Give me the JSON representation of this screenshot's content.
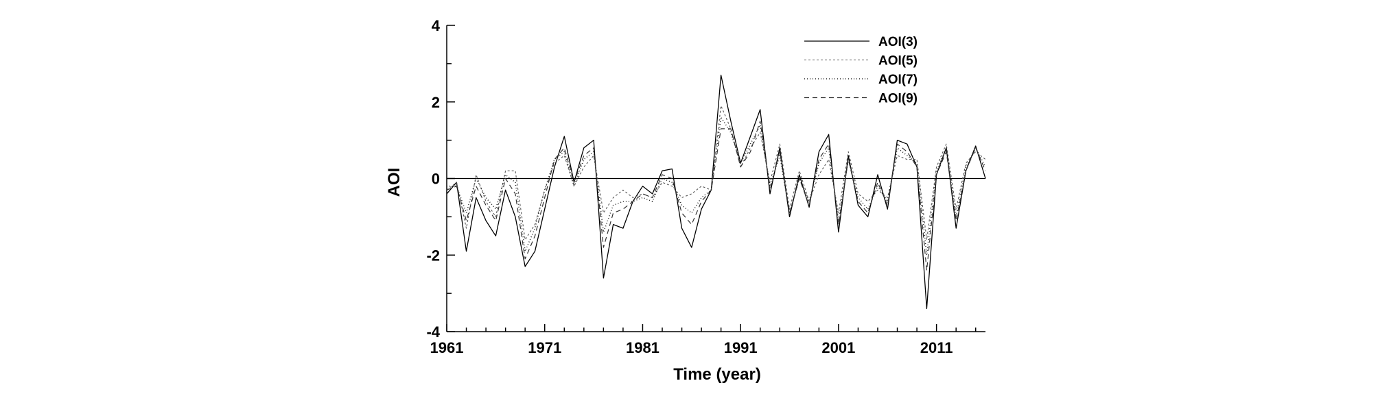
{
  "chart_data": {
    "type": "line",
    "title": "",
    "xlabel": "Time (year)",
    "ylabel": "AOI",
    "xlim": [
      1961,
      2016
    ],
    "ylim": [
      -4,
      4
    ],
    "x_ticks": [
      1961,
      1971,
      1981,
      1991,
      2001,
      2011
    ],
    "y_ticks": [
      4,
      2,
      0,
      -2,
      -4
    ],
    "y_tick_labels": [
      "4",
      "2",
      "0",
      "-2",
      "-4"
    ],
    "zero_line": true,
    "grid": false,
    "legend_position": "top-right",
    "x": [
      1961,
      1962,
      1963,
      1964,
      1965,
      1966,
      1967,
      1968,
      1969,
      1970,
      1971,
      1972,
      1973,
      1974,
      1975,
      1976,
      1977,
      1978,
      1979,
      1980,
      1981,
      1982,
      1983,
      1984,
      1985,
      1986,
      1987,
      1988,
      1989,
      1990,
      1991,
      1992,
      1993,
      1994,
      1995,
      1996,
      1997,
      1998,
      1999,
      2000,
      2001,
      2002,
      2003,
      2004,
      2005,
      2006,
      2007,
      2008,
      2009,
      2010,
      2011,
      2012,
      2013,
      2014,
      2015,
      2016
    ],
    "series": [
      {
        "name": "AOI(3)",
        "dash": "none",
        "values": [
          -0.4,
          -0.1,
          -1.9,
          -0.5,
          -1.1,
          -1.5,
          -0.3,
          -1.0,
          -2.3,
          -1.9,
          -0.8,
          0.3,
          1.1,
          -0.1,
          0.8,
          1.0,
          -2.6,
          -1.2,
          -1.3,
          -0.6,
          -0.2,
          -0.4,
          0.2,
          0.25,
          -1.3,
          -1.8,
          -0.8,
          -0.3,
          2.7,
          1.5,
          0.4,
          1.1,
          1.8,
          -0.4,
          0.8,
          -1.0,
          0.1,
          -0.75,
          0.7,
          1.15,
          -1.4,
          0.6,
          -0.7,
          -1.0,
          0.1,
          -0.8,
          1.0,
          0.9,
          0.3,
          -3.4,
          0.1,
          0.8,
          -1.3,
          0.2,
          0.85,
          0.0
        ]
      },
      {
        "name": "AOI(5)",
        "dash": "3,3",
        "values": [
          -0.3,
          -0.1,
          -1.3,
          0.1,
          -0.6,
          -1.0,
          0.2,
          0.2,
          -1.6,
          -1.2,
          -0.3,
          0.4,
          0.6,
          -0.2,
          0.3,
          0.6,
          -0.9,
          -0.5,
          -0.3,
          -0.5,
          -0.4,
          -0.5,
          -0.1,
          -0.2,
          -0.5,
          -0.4,
          -0.2,
          -0.3,
          1.9,
          1.3,
          0.3,
          0.8,
          1.2,
          -0.1,
          0.9,
          -0.8,
          0.2,
          -0.6,
          0.1,
          0.5,
          -0.9,
          0.7,
          -0.4,
          -0.6,
          -0.3,
          -0.5,
          0.6,
          0.5,
          0.5,
          -1.6,
          0.3,
          0.9,
          -0.8,
          0.4,
          0.7,
          0.5
        ]
      },
      {
        "name": "AOI(7)",
        "dash": "1,3",
        "values": [
          -0.2,
          -0.2,
          -0.9,
          0.0,
          -0.5,
          -0.8,
          0.1,
          -0.1,
          -1.9,
          -1.3,
          -0.3,
          0.5,
          0.7,
          -0.2,
          0.5,
          0.7,
          -1.4,
          -0.7,
          -0.6,
          -0.6,
          -0.5,
          -0.6,
          0.0,
          -0.1,
          -0.7,
          -0.9,
          -0.5,
          -0.3,
          1.6,
          1.2,
          0.4,
          0.9,
          1.4,
          -0.2,
          0.6,
          -0.9,
          0.0,
          -0.6,
          0.4,
          0.8,
          -1.1,
          0.5,
          -0.5,
          -0.8,
          -0.2,
          -0.6,
          0.8,
          0.6,
          0.4,
          -2.0,
          0.2,
          0.8,
          -1.0,
          0.3,
          0.8,
          0.3
        ]
      },
      {
        "name": "AOI(9)",
        "dash": "7,5",
        "values": [
          -0.3,
          -0.2,
          -1.1,
          -0.2,
          -0.7,
          -1.1,
          0.0,
          -0.4,
          -2.1,
          -1.5,
          -0.5,
          0.5,
          0.8,
          -0.1,
          0.6,
          0.8,
          -1.8,
          -0.9,
          -0.8,
          -0.6,
          -0.4,
          -0.5,
          0.1,
          0.0,
          -0.9,
          -1.2,
          -0.6,
          -0.3,
          1.3,
          1.3,
          0.3,
          0.7,
          1.5,
          -0.3,
          0.7,
          -0.9,
          0.0,
          -0.7,
          0.5,
          0.9,
          -1.2,
          0.5,
          -0.6,
          -0.9,
          -0.1,
          -0.7,
          0.9,
          0.7,
          0.3,
          -2.4,
          0.1,
          0.7,
          -1.1,
          0.2,
          0.8,
          0.2
        ]
      }
    ]
  }
}
